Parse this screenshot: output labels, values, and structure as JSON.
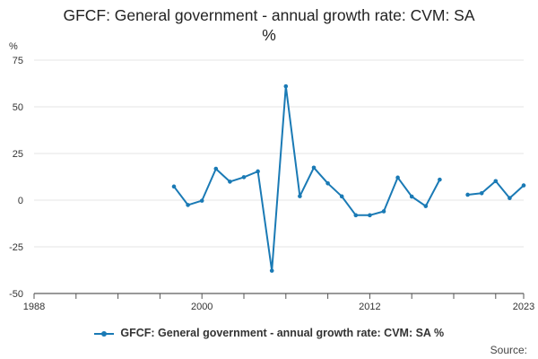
{
  "chart_data": {
    "type": "line",
    "title_line1": "GFCF: General government - annual growth rate: CVM: SA",
    "title_line2": "%",
    "ylabel": "%",
    "xlabel": "",
    "ylim": [
      -50,
      75
    ],
    "xlim": [
      1988,
      2023
    ],
    "yticks": [
      75,
      50,
      25,
      0,
      -25,
      -50
    ],
    "xtick_labels": [
      "1988",
      "2000",
      "2012",
      "2023"
    ],
    "grid": true,
    "legend_position": "bottom",
    "series": [
      {
        "name": "GFCF: General government - annual growth rate: CVM: SA %",
        "color": "#1a7ab5",
        "points": [
          [
            1998,
            7.3
          ],
          [
            1999,
            -2.6
          ],
          [
            2000,
            -0.3
          ],
          [
            2001,
            16.8
          ],
          [
            2002,
            9.9
          ],
          [
            2003,
            12.3
          ],
          [
            2004,
            15.4
          ],
          [
            2005,
            -37.8
          ],
          [
            2006,
            61.0
          ],
          [
            2007,
            2.1
          ],
          [
            2008,
            17.4
          ],
          [
            2009,
            9.0
          ],
          [
            2010,
            2.0
          ],
          [
            2011,
            -8.1
          ],
          [
            2012,
            -8.1
          ],
          [
            2013,
            -6.0
          ],
          [
            2014,
            12.1
          ],
          [
            2015,
            1.9
          ],
          [
            2016,
            -3.2
          ],
          [
            2017,
            11.0
          ],
          [
            2018,
            null
          ],
          [
            2019,
            2.9
          ],
          [
            2020,
            3.7
          ],
          [
            2021,
            10.2
          ],
          [
            2022,
            1.1
          ],
          [
            2023,
            7.9
          ]
        ]
      }
    ]
  },
  "footer": {
    "source_label": "Source:"
  }
}
